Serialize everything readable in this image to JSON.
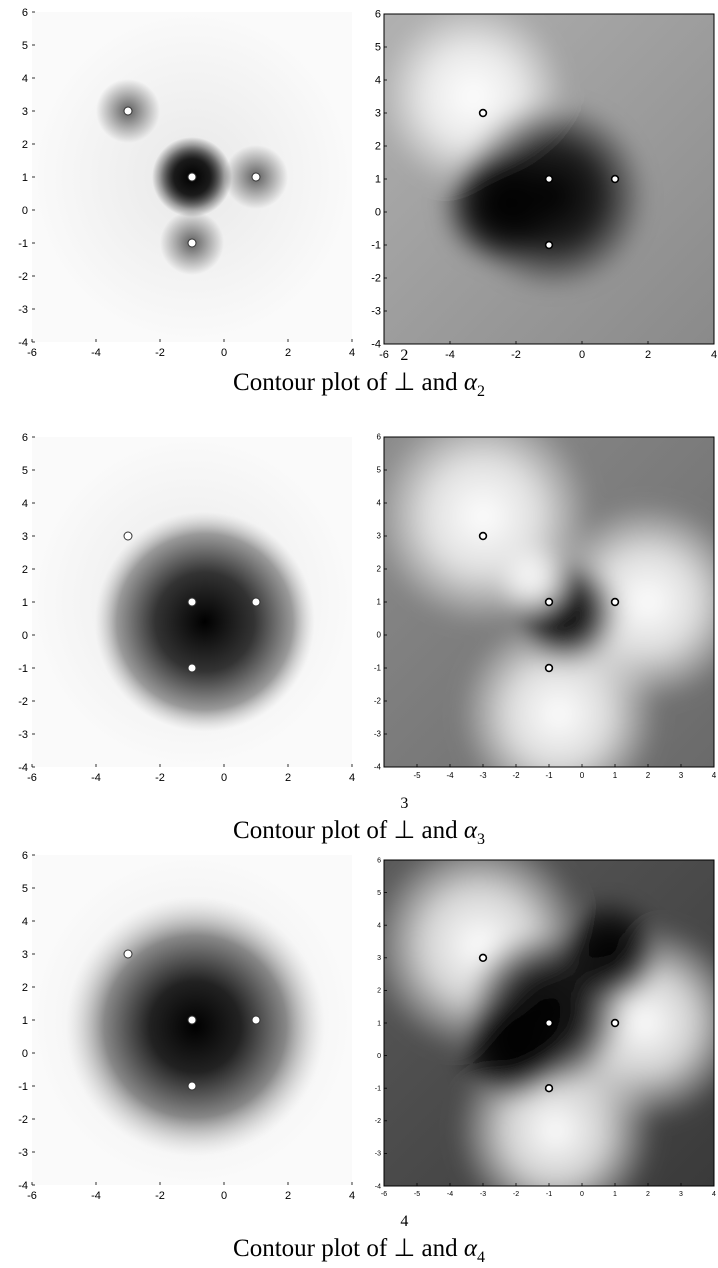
{
  "sections": [
    {
      "caption": {
        "text": "Contour plot of",
        "symbol": "⊥",
        "superscript": "2",
        "conjunction": "and",
        "greek": "α",
        "subscript": "2"
      },
      "left": {
        "xticks": [
          "-6",
          "-4",
          "-2",
          "0",
          "2",
          "4"
        ],
        "yticks": [
          "6",
          "5",
          "4",
          "3",
          "2",
          "1",
          "0",
          "-1",
          "-2",
          "-3",
          "-4"
        ]
      },
      "right": {
        "xticks": [
          "-6",
          "-4",
          "-2",
          "0",
          "2",
          "4"
        ],
        "yticks": [
          "6",
          "5",
          "4",
          "3",
          "2",
          "1",
          "0",
          "-1",
          "-2",
          "-3",
          "-4"
        ]
      }
    },
    {
      "caption": {
        "text": "Contour plot of",
        "symbol": "⊥",
        "superscript": "3",
        "conjunction": "and",
        "greek": "α",
        "subscript": "3"
      },
      "left": {
        "xticks": [
          "-6",
          "-4",
          "-2",
          "0",
          "2",
          "4"
        ],
        "yticks": [
          "6",
          "5",
          "4",
          "3",
          "2",
          "1",
          "0",
          "-1",
          "-2",
          "-3",
          "-4"
        ]
      },
      "right": {
        "xticks": [
          "-5",
          "-4",
          "-3",
          "-2",
          "-1",
          "0",
          "1",
          "2",
          "3",
          "4"
        ],
        "yticks": [
          "6",
          "5",
          "4",
          "3",
          "2",
          "1",
          "0",
          "-1",
          "-2",
          "-3",
          "-4"
        ]
      }
    },
    {
      "caption": {
        "text": "Contour plot of",
        "symbol": "⊥",
        "superscript": "4",
        "conjunction": "and",
        "greek": "α",
        "subscript": "4"
      },
      "left": {
        "xticks": [
          "-6",
          "-4",
          "-2",
          "0",
          "2",
          "4"
        ],
        "yticks": [
          "6",
          "5",
          "4",
          "3",
          "2",
          "1",
          "0",
          "-1",
          "-2",
          "-3",
          "-4"
        ]
      },
      "right": {
        "xticks": [
          "-6",
          "-5",
          "-4",
          "-3",
          "-2",
          "-1",
          "0",
          "1",
          "2",
          "3",
          "4"
        ],
        "yticks": [
          "6",
          "5",
          "4",
          "3",
          "2",
          "1",
          "0",
          "-1",
          "-2",
          "-3",
          "-4"
        ]
      }
    }
  ],
  "chart_data": [
    {
      "type": "heatmap",
      "panel": "left",
      "section": 2,
      "xlim": [
        -6,
        4
      ],
      "ylim": [
        -4,
        6
      ],
      "points": [
        {
          "x": -3,
          "y": 3
        },
        {
          "x": -1,
          "y": 1
        },
        {
          "x": 1,
          "y": 1
        },
        {
          "x": -1,
          "y": -1
        }
      ]
    },
    {
      "type": "heatmap",
      "panel": "right",
      "section": 2,
      "xlim": [
        -6,
        4
      ],
      "ylim": [
        -4,
        6
      ],
      "points": [
        {
          "x": -3,
          "y": 3
        },
        {
          "x": -1,
          "y": 1
        },
        {
          "x": 1,
          "y": 1
        },
        {
          "x": -1,
          "y": -1
        }
      ]
    },
    {
      "type": "heatmap",
      "panel": "left",
      "section": 3,
      "xlim": [
        -6,
        4
      ],
      "ylim": [
        -4,
        6
      ],
      "points": [
        {
          "x": -3,
          "y": 3
        },
        {
          "x": -1,
          "y": 1
        },
        {
          "x": 1,
          "y": 1
        },
        {
          "x": -1,
          "y": -1
        }
      ]
    },
    {
      "type": "heatmap",
      "panel": "right",
      "section": 3,
      "xlim": [
        -6,
        4
      ],
      "ylim": [
        -4,
        6
      ],
      "points": [
        {
          "x": -3,
          "y": 3
        },
        {
          "x": -1,
          "y": 1
        },
        {
          "x": 1,
          "y": 1
        },
        {
          "x": -1,
          "y": -1
        }
      ]
    },
    {
      "type": "heatmap",
      "panel": "left",
      "section": 4,
      "xlim": [
        -6,
        4
      ],
      "ylim": [
        -4,
        6
      ],
      "points": [
        {
          "x": -3,
          "y": 3
        },
        {
          "x": -1,
          "y": 1
        },
        {
          "x": 1,
          "y": 1
        },
        {
          "x": -1,
          "y": -1
        }
      ]
    },
    {
      "type": "heatmap",
      "panel": "right",
      "section": 4,
      "xlim": [
        -6,
        4
      ],
      "ylim": [
        -4,
        6
      ],
      "points": [
        {
          "x": -3,
          "y": 3
        },
        {
          "x": -1,
          "y": 1
        },
        {
          "x": 1,
          "y": 1
        },
        {
          "x": -1,
          "y": -1
        }
      ]
    }
  ]
}
